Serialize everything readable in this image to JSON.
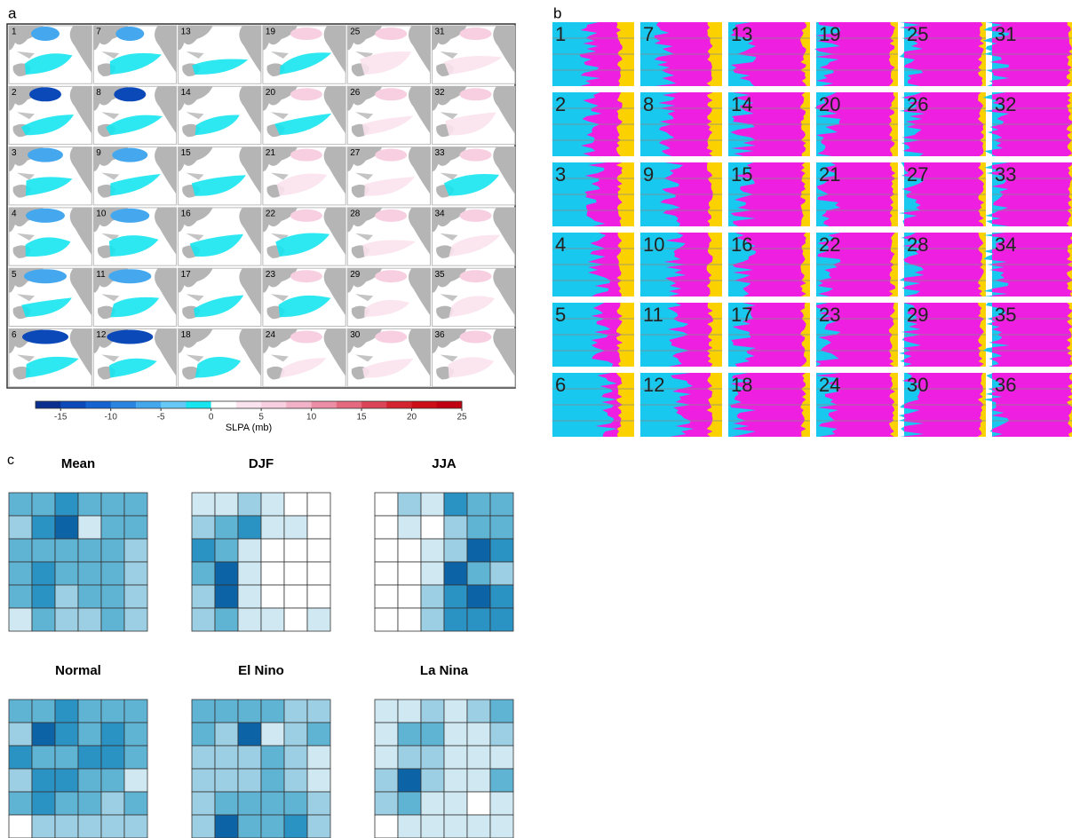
{
  "panels": {
    "a": {
      "label": "a",
      "maps": [
        1,
        2,
        3,
        4,
        5,
        6,
        7,
        8,
        9,
        10,
        11,
        12,
        13,
        14,
        15,
        16,
        17,
        18,
        19,
        20,
        21,
        22,
        23,
        24,
        25,
        26,
        27,
        28,
        29,
        30,
        31,
        32,
        33,
        34,
        35,
        36
      ],
      "colorbar": {
        "range": [
          -17.5,
          25
        ],
        "ticks": [
          -15,
          -10,
          -5,
          0,
          5,
          10,
          15,
          20,
          25
        ],
        "label": "SLPA (mb)",
        "colors": [
          "#0a2f8f",
          "#0b48b8",
          "#1563d0",
          "#2a85e0",
          "#45a8ee",
          "#66c8f5",
          "#17e6f0",
          "#ffffff",
          "#fbe3ee",
          "#f7cfe0",
          "#f2b2c8",
          "#ec8fa6",
          "#e46b7f",
          "#dc4557",
          "#d42430",
          "#cc0e16",
          "#c00010"
        ]
      }
    },
    "b": {
      "label": "b",
      "tiles": [
        1,
        2,
        3,
        4,
        5,
        6,
        7,
        8,
        9,
        10,
        11,
        12,
        13,
        14,
        15,
        16,
        17,
        18,
        19,
        20,
        21,
        22,
        23,
        24,
        25,
        26,
        27,
        28,
        29,
        30,
        31,
        32,
        33,
        34,
        35,
        36
      ]
    },
    "c": {
      "label": "c",
      "palette": [
        "#ffffff",
        "#cfe8f1",
        "#9ccfe3",
        "#5fb4d4",
        "#2a93c4",
        "#0c63a6"
      ],
      "heatmaps": [
        {
          "title": "Mean",
          "values": [
            [
              3,
              3,
              4,
              3,
              3,
              3
            ],
            [
              2,
              4,
              5,
              1,
              3,
              3
            ],
            [
              3,
              3,
              3,
              3,
              3,
              2
            ],
            [
              3,
              4,
              3,
              3,
              3,
              2
            ],
            [
              3,
              4,
              2,
              3,
              3,
              2
            ],
            [
              1,
              3,
              2,
              2,
              3,
              2
            ]
          ]
        },
        {
          "title": "DJF",
          "values": [
            [
              1,
              1,
              2,
              1,
              0,
              0
            ],
            [
              2,
              3,
              4,
              1,
              1,
              0
            ],
            [
              4,
              3,
              1,
              0,
              0,
              0
            ],
            [
              3,
              5,
              1,
              0,
              0,
              0
            ],
            [
              2,
              5,
              1,
              0,
              0,
              0
            ],
            [
              2,
              3,
              1,
              1,
              0,
              1
            ]
          ]
        },
        {
          "title": "JJA",
          "values": [
            [
              0,
              2,
              1,
              4,
              3,
              3
            ],
            [
              0,
              1,
              0,
              2,
              3,
              3
            ],
            [
              0,
              0,
              1,
              2,
              5,
              4
            ],
            [
              0,
              0,
              1,
              5,
              3,
              2
            ],
            [
              0,
              0,
              2,
              4,
              5,
              4
            ],
            [
              0,
              0,
              2,
              4,
              4,
              4
            ]
          ]
        },
        {
          "title": "Normal",
          "values": [
            [
              3,
              3,
              4,
              3,
              3,
              3
            ],
            [
              2,
              5,
              4,
              3,
              4,
              3
            ],
            [
              4,
              3,
              3,
              4,
              4,
              3
            ],
            [
              2,
              4,
              4,
              3,
              3,
              1
            ],
            [
              3,
              4,
              3,
              3,
              2,
              3
            ],
            [
              0,
              2,
              2,
              2,
              2,
              2
            ]
          ]
        },
        {
          "title": "El Nino",
          "values": [
            [
              3,
              3,
              3,
              3,
              2,
              2
            ],
            [
              3,
              2,
              5,
              1,
              2,
              3
            ],
            [
              2,
              2,
              2,
              3,
              2,
              1
            ],
            [
              2,
              2,
              2,
              3,
              2,
              1
            ],
            [
              2,
              3,
              3,
              3,
              3,
              2
            ],
            [
              2,
              5,
              3,
              3,
              4,
              2
            ]
          ]
        },
        {
          "title": "La Nina",
          "values": [
            [
              1,
              1,
              2,
              1,
              2,
              3
            ],
            [
              1,
              3,
              3,
              1,
              1,
              2
            ],
            [
              1,
              2,
              2,
              1,
              1,
              1
            ],
            [
              2,
              5,
              2,
              1,
              1,
              3
            ],
            [
              2,
              3,
              1,
              1,
              0,
              1
            ],
            [
              0,
              1,
              1,
              1,
              1,
              1
            ]
          ]
        }
      ]
    }
  }
}
